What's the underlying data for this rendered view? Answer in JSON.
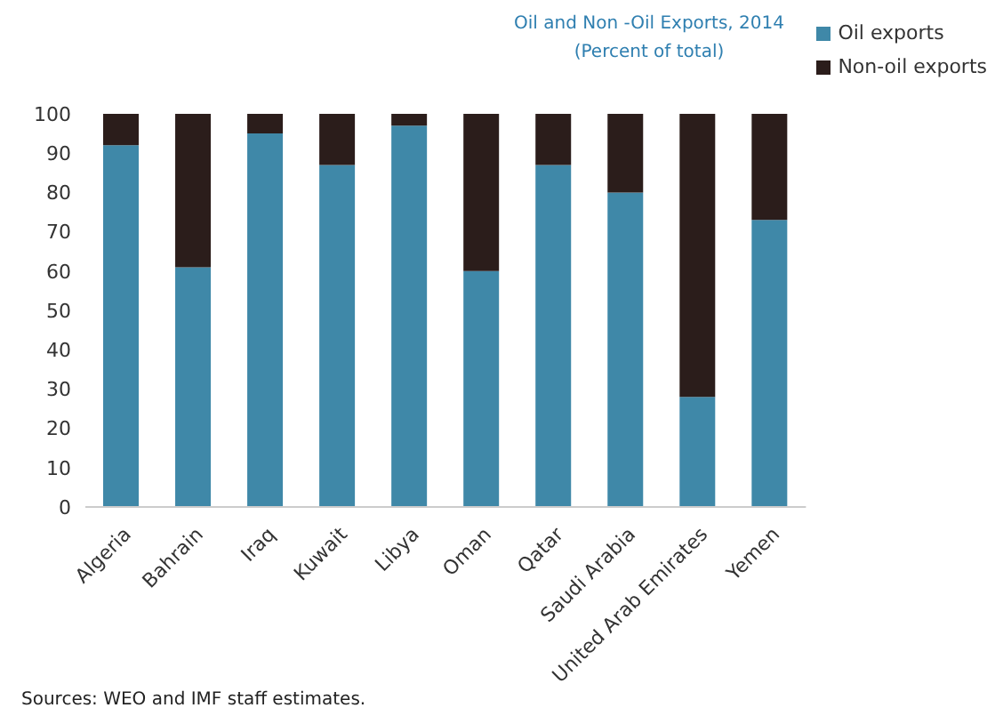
{
  "chart_data": {
    "type": "bar",
    "title": "Oil and Non  -Oil Exports, 2014",
    "subtitle": "(Percent of total)",
    "categories": [
      "Algeria",
      "Bahrain",
      "Iraq",
      "Kuwait",
      "Libya",
      "Oman",
      "Qatar",
      "Saudi Arabia",
      "United Arab Emirates",
      "Yemen"
    ],
    "series": [
      {
        "name": "Oil exports",
        "color": "#3f88a8",
        "values": [
          92,
          61,
          95,
          87,
          97,
          60,
          87,
          80,
          28,
          73
        ]
      },
      {
        "name": "Non-oil exports",
        "color": "#2b1d1b",
        "values": [
          8,
          39,
          5,
          13,
          3,
          40,
          13,
          20,
          72,
          27
        ]
      }
    ],
    "stacked": true,
    "ylim": [
      0,
      100
    ],
    "yticks": [
      0,
      10,
      20,
      30,
      40,
      50,
      60,
      70,
      80,
      90,
      100
    ],
    "grid": false,
    "legend": "top right",
    "annotations": [
      "Sources: WEO and IMF staff estimates."
    ]
  }
}
